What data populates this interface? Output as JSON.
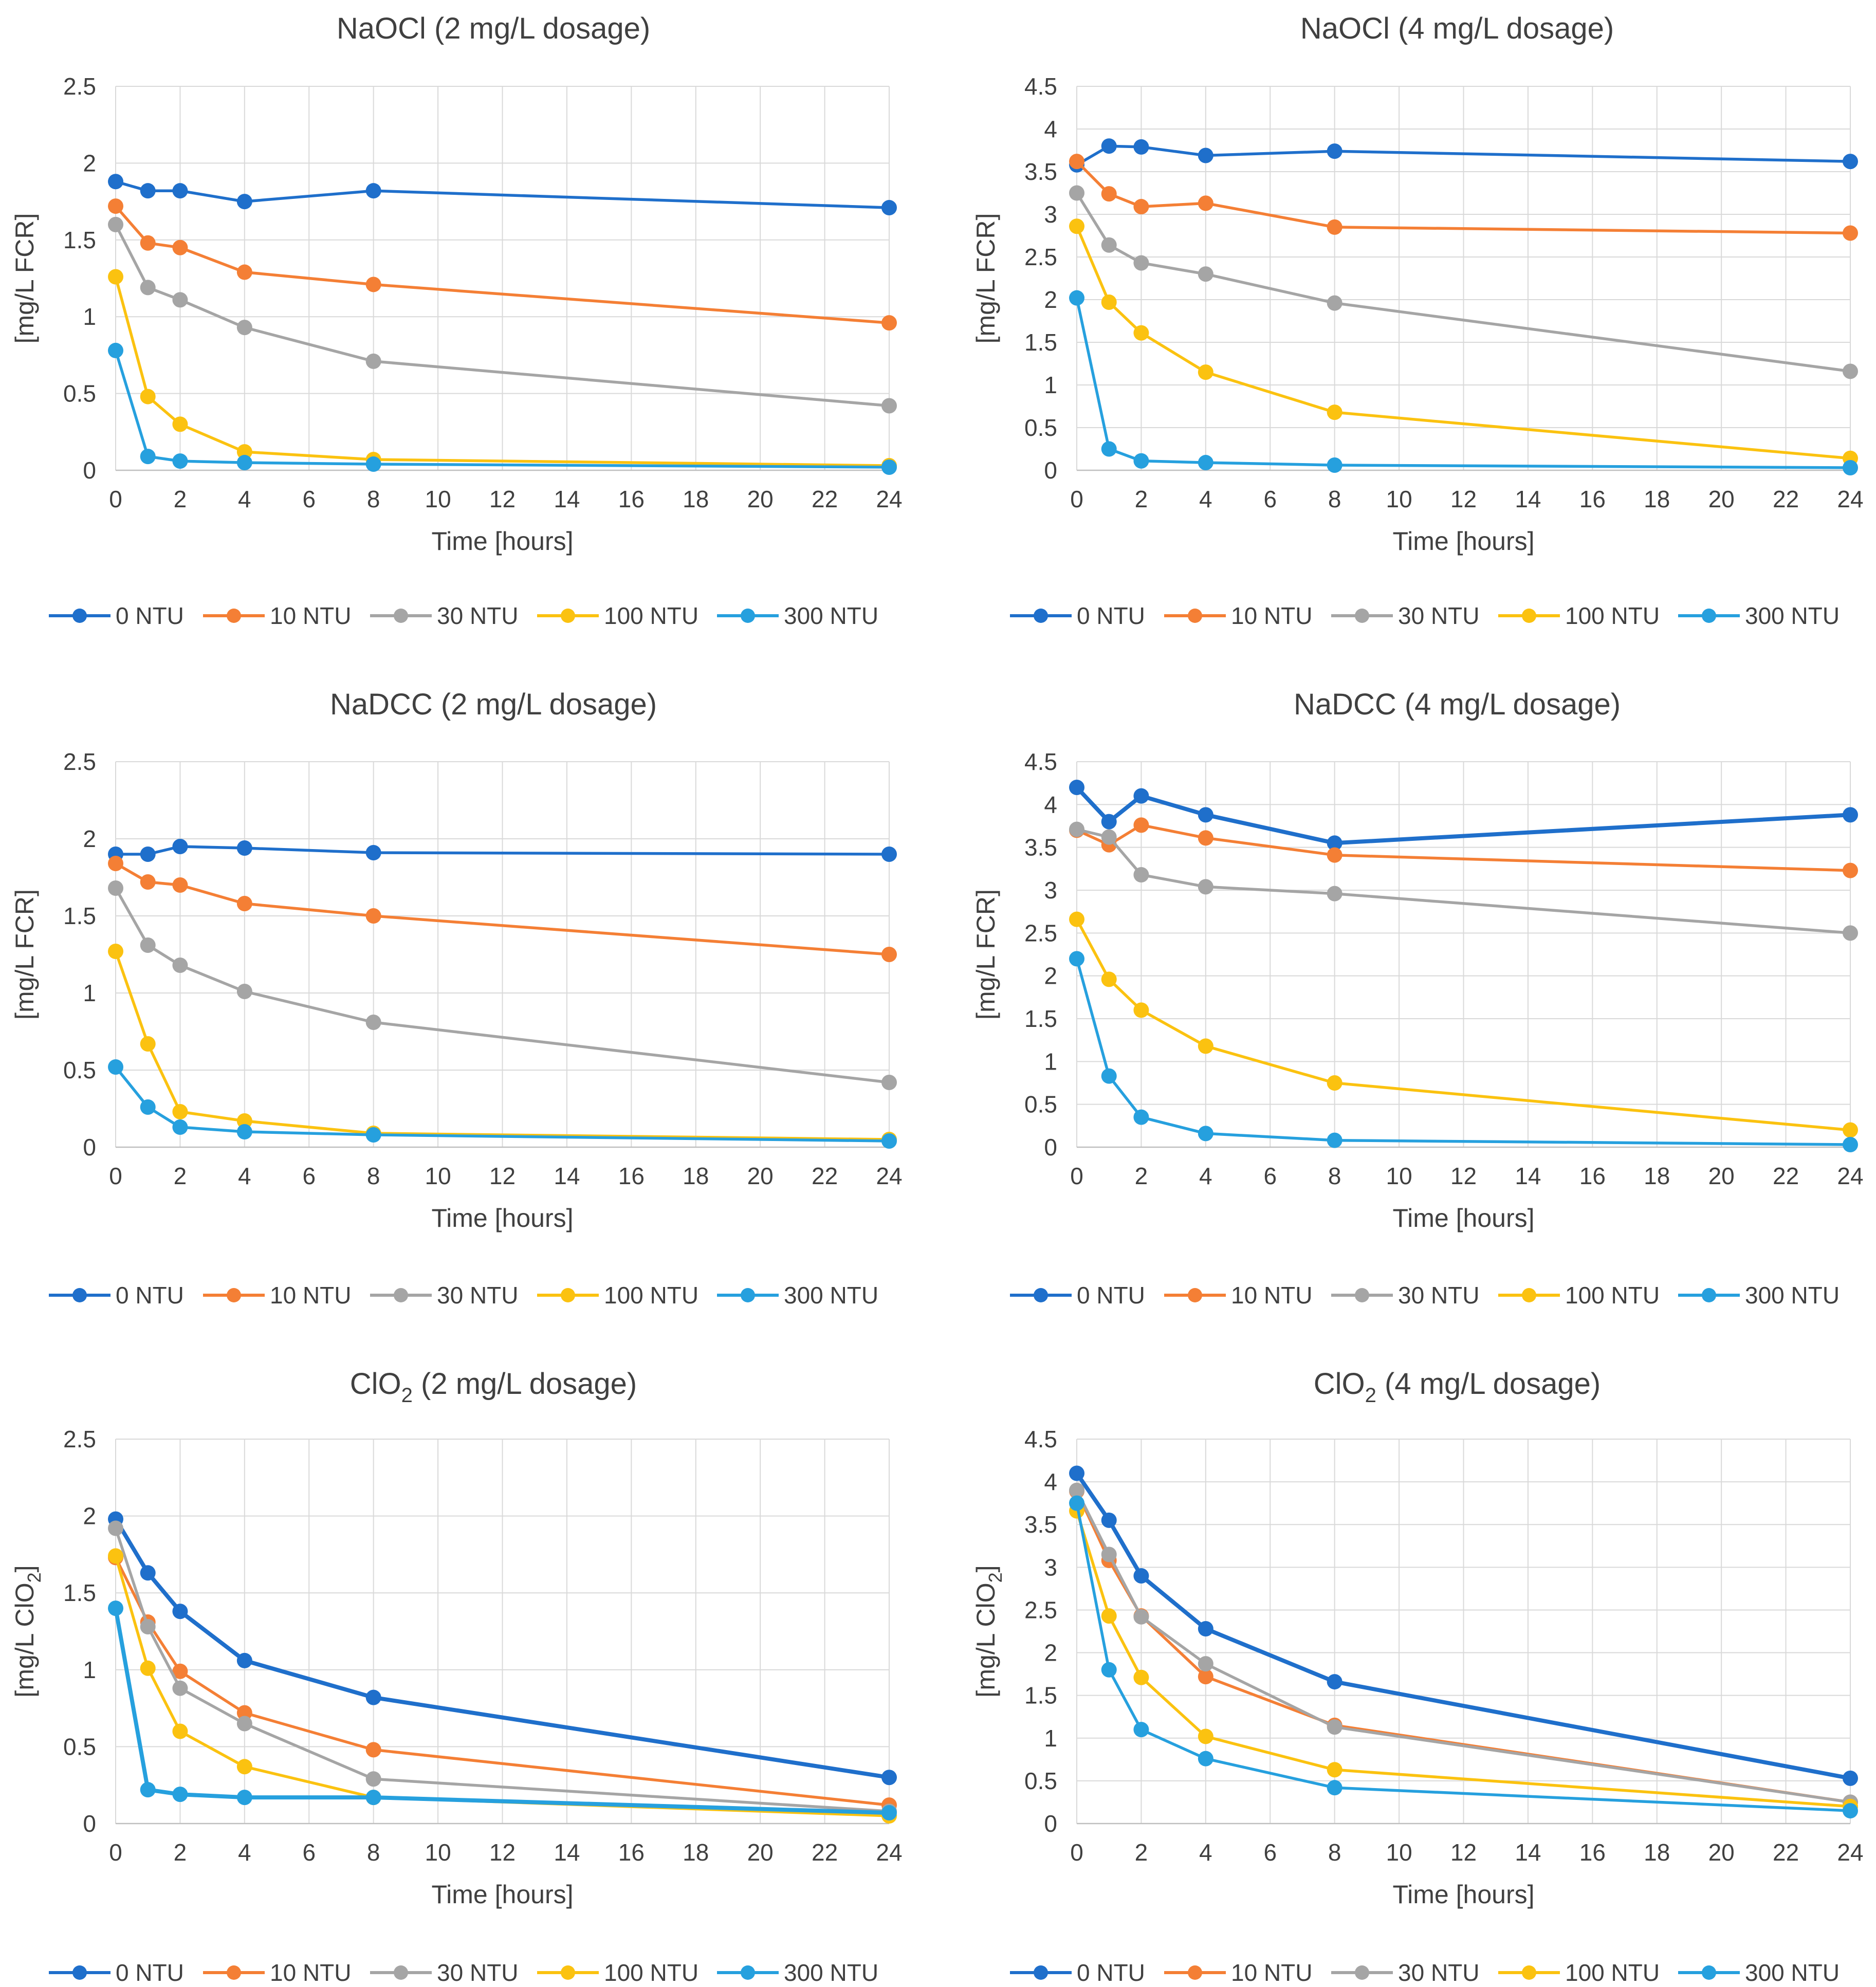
{
  "legend_labels": [
    "0 NTU",
    "10 NTU",
    "30 NTU",
    "100 NTU",
    "300 NTU"
  ],
  "series_colors": [
    "#1f6fcb",
    "#f47f35",
    "#a5a5a5",
    "#fbc210",
    "#26a0de"
  ],
  "x_label": "Time [hours]",
  "chart_data": [
    {
      "type": "line",
      "title": "NaOCl (2 mg/L dosage)",
      "xlabel": "Time [hours]",
      "ylabel": "[mg/L FCR]",
      "xlim": [
        0,
        24
      ],
      "xticks": [
        0,
        2,
        4,
        6,
        8,
        10,
        12,
        14,
        16,
        18,
        20,
        22,
        24
      ],
      "ylim": [
        0,
        2.5
      ],
      "yticks": [
        0,
        0.5,
        1,
        1.5,
        2,
        2.5
      ],
      "x": [
        0,
        1,
        2,
        4,
        8,
        24
      ],
      "series": [
        {
          "name": "0 NTU",
          "values": [
            1.88,
            1.82,
            1.82,
            1.75,
            1.82,
            1.71
          ]
        },
        {
          "name": "10 NTU",
          "values": [
            1.72,
            1.48,
            1.45,
            1.29,
            1.21,
            0.96
          ]
        },
        {
          "name": "30 NTU",
          "values": [
            1.6,
            1.19,
            1.11,
            0.93,
            0.71,
            0.42
          ]
        },
        {
          "name": "100 NTU",
          "values": [
            1.26,
            0.48,
            0.3,
            0.12,
            0.07,
            0.03
          ]
        },
        {
          "name": "300 NTU",
          "values": [
            0.78,
            0.09,
            0.06,
            0.05,
            0.04,
            0.02
          ]
        }
      ]
    },
    {
      "type": "line",
      "title": "NaOCl (4 mg/L dosage)",
      "xlabel": "Time [hours]",
      "ylabel": "[mg/L FCR]",
      "xlim": [
        0,
        24
      ],
      "xticks": [
        0,
        2,
        4,
        6,
        8,
        10,
        12,
        14,
        16,
        18,
        20,
        22,
        24
      ],
      "ylim": [
        0,
        4.5
      ],
      "yticks": [
        0,
        0.5,
        1,
        1.5,
        2,
        2.5,
        3,
        3.5,
        4,
        4.5
      ],
      "x": [
        0,
        1,
        2,
        4,
        8,
        24
      ],
      "series": [
        {
          "name": "0 NTU",
          "values": [
            3.58,
            3.8,
            3.79,
            3.69,
            3.74,
            3.62
          ]
        },
        {
          "name": "10 NTU",
          "values": [
            3.62,
            3.24,
            3.09,
            3.13,
            2.85,
            2.78
          ]
        },
        {
          "name": "30 NTU",
          "values": [
            3.25,
            2.64,
            2.43,
            2.3,
            1.96,
            1.16
          ]
        },
        {
          "name": "100 NTU",
          "values": [
            2.86,
            1.97,
            1.61,
            1.15,
            0.68,
            0.14
          ]
        },
        {
          "name": "300 NTU",
          "values": [
            2.02,
            0.25,
            0.11,
            0.09,
            0.06,
            0.03
          ]
        }
      ]
    },
    {
      "type": "line",
      "title": "NaDCC (2 mg/L dosage)",
      "xlabel": "Time [hours]",
      "ylabel": "[mg/L FCR]",
      "xlim": [
        0,
        24
      ],
      "xticks": [
        0,
        2,
        4,
        6,
        8,
        10,
        12,
        14,
        16,
        18,
        20,
        22,
        24
      ],
      "ylim": [
        0,
        2.5
      ],
      "yticks": [
        0,
        0.5,
        1,
        1.5,
        2,
        2.5
      ],
      "x": [
        0,
        1,
        2,
        4,
        8,
        24
      ],
      "series": [
        {
          "name": "0 NTU",
          "values": [
            1.9,
            1.9,
            1.95,
            1.94,
            1.91,
            1.9
          ]
        },
        {
          "name": "10 NTU",
          "values": [
            1.84,
            1.72,
            1.7,
            1.58,
            1.5,
            1.25
          ]
        },
        {
          "name": "30 NTU",
          "values": [
            1.68,
            1.31,
            1.18,
            1.01,
            0.81,
            0.42
          ]
        },
        {
          "name": "100 NTU",
          "values": [
            1.27,
            0.67,
            0.23,
            0.17,
            0.09,
            0.05
          ]
        },
        {
          "name": "300 NTU",
          "values": [
            0.52,
            0.26,
            0.13,
            0.1,
            0.08,
            0.04
          ]
        }
      ]
    },
    {
      "type": "line",
      "title": "NaDCC (4 mg/L dosage)",
      "xlabel": "Time [hours]",
      "ylabel": "[mg/L FCR]",
      "xlim": [
        0,
        24
      ],
      "xticks": [
        0,
        2,
        4,
        6,
        8,
        10,
        12,
        14,
        16,
        18,
        20,
        22,
        24
      ],
      "ylim": [
        0,
        4.5
      ],
      "yticks": [
        0,
        0.5,
        1,
        1.5,
        2,
        2.5,
        3,
        3.5,
        4,
        4.5
      ],
      "x": [
        0,
        1,
        2,
        4,
        8,
        24
      ],
      "series": [
        {
          "name": "0 NTU",
          "values": [
            4.2,
            3.8,
            4.1,
            3.88,
            3.55,
            3.88
          ]
        },
        {
          "name": "10 NTU",
          "values": [
            3.7,
            3.53,
            3.76,
            3.61,
            3.41,
            3.23
          ]
        },
        {
          "name": "30 NTU",
          "values": [
            3.71,
            3.62,
            3.18,
            3.04,
            2.96,
            2.5
          ]
        },
        {
          "name": "100 NTU",
          "values": [
            2.66,
            1.96,
            1.6,
            1.18,
            0.75,
            0.2
          ]
        },
        {
          "name": "300 NTU",
          "values": [
            2.2,
            0.83,
            0.35,
            0.16,
            0.08,
            0.03
          ]
        }
      ]
    },
    {
      "type": "line",
      "title_main": "ClO",
      "title_sub": "2",
      "title_rest": " (2 mg/L dosage)",
      "xlabel": "Time [hours]",
      "ylabel_main": "[mg/L ClO",
      "ylabel_sub": "2",
      "ylabel_rest": "]",
      "xlim": [
        0,
        24
      ],
      "xticks": [
        0,
        2,
        4,
        6,
        8,
        10,
        12,
        14,
        16,
        18,
        20,
        22,
        24
      ],
      "ylim": [
        0,
        2.5
      ],
      "yticks": [
        0,
        0.5,
        1,
        1.5,
        2,
        2.5
      ],
      "x": [
        0,
        1,
        2,
        4,
        8,
        24
      ],
      "series": [
        {
          "name": "0 NTU",
          "values": [
            1.98,
            1.63,
            1.38,
            1.06,
            0.82,
            0.3
          ]
        },
        {
          "name": "10 NTU",
          "values": [
            1.73,
            1.31,
            0.99,
            0.72,
            0.48,
            0.12
          ]
        },
        {
          "name": "30 NTU",
          "values": [
            1.92,
            1.28,
            0.88,
            0.65,
            0.29,
            0.08
          ]
        },
        {
          "name": "100 NTU",
          "values": [
            1.74,
            1.01,
            0.6,
            0.37,
            0.17,
            0.05
          ]
        },
        {
          "name": "300 NTU",
          "values": [
            1.4,
            0.22,
            0.19,
            0.17,
            0.17,
            0.07
          ]
        }
      ]
    },
    {
      "type": "line",
      "title_main": "ClO",
      "title_sub": "2",
      "title_rest": " (4 mg/L dosage)",
      "xlabel": "Time [hours]",
      "ylabel_main": "[mg/L ClO",
      "ylabel_sub": "2",
      "ylabel_rest": "]",
      "xlim": [
        0,
        24
      ],
      "xticks": [
        0,
        2,
        4,
        6,
        8,
        10,
        12,
        14,
        16,
        18,
        20,
        22,
        24
      ],
      "ylim": [
        0,
        4.5
      ],
      "yticks": [
        0,
        0.5,
        1,
        1.5,
        2,
        2.5,
        3,
        3.5,
        4,
        4.5
      ],
      "x": [
        0,
        1,
        2,
        4,
        8,
        24
      ],
      "series": [
        {
          "name": "0 NTU",
          "values": [
            4.1,
            3.55,
            2.9,
            2.28,
            1.66,
            0.53
          ]
        },
        {
          "name": "10 NTU",
          "values": [
            3.89,
            3.08,
            2.43,
            1.72,
            1.15,
            0.25
          ]
        },
        {
          "name": "30 NTU",
          "values": [
            3.9,
            3.15,
            2.42,
            1.87,
            1.13,
            0.25
          ]
        },
        {
          "name": "100 NTU",
          "values": [
            3.66,
            2.43,
            1.71,
            1.02,
            0.63,
            0.2
          ]
        },
        {
          "name": "300 NTU",
          "values": [
            3.75,
            1.8,
            1.1,
            0.76,
            0.42,
            0.15
          ]
        }
      ]
    }
  ]
}
